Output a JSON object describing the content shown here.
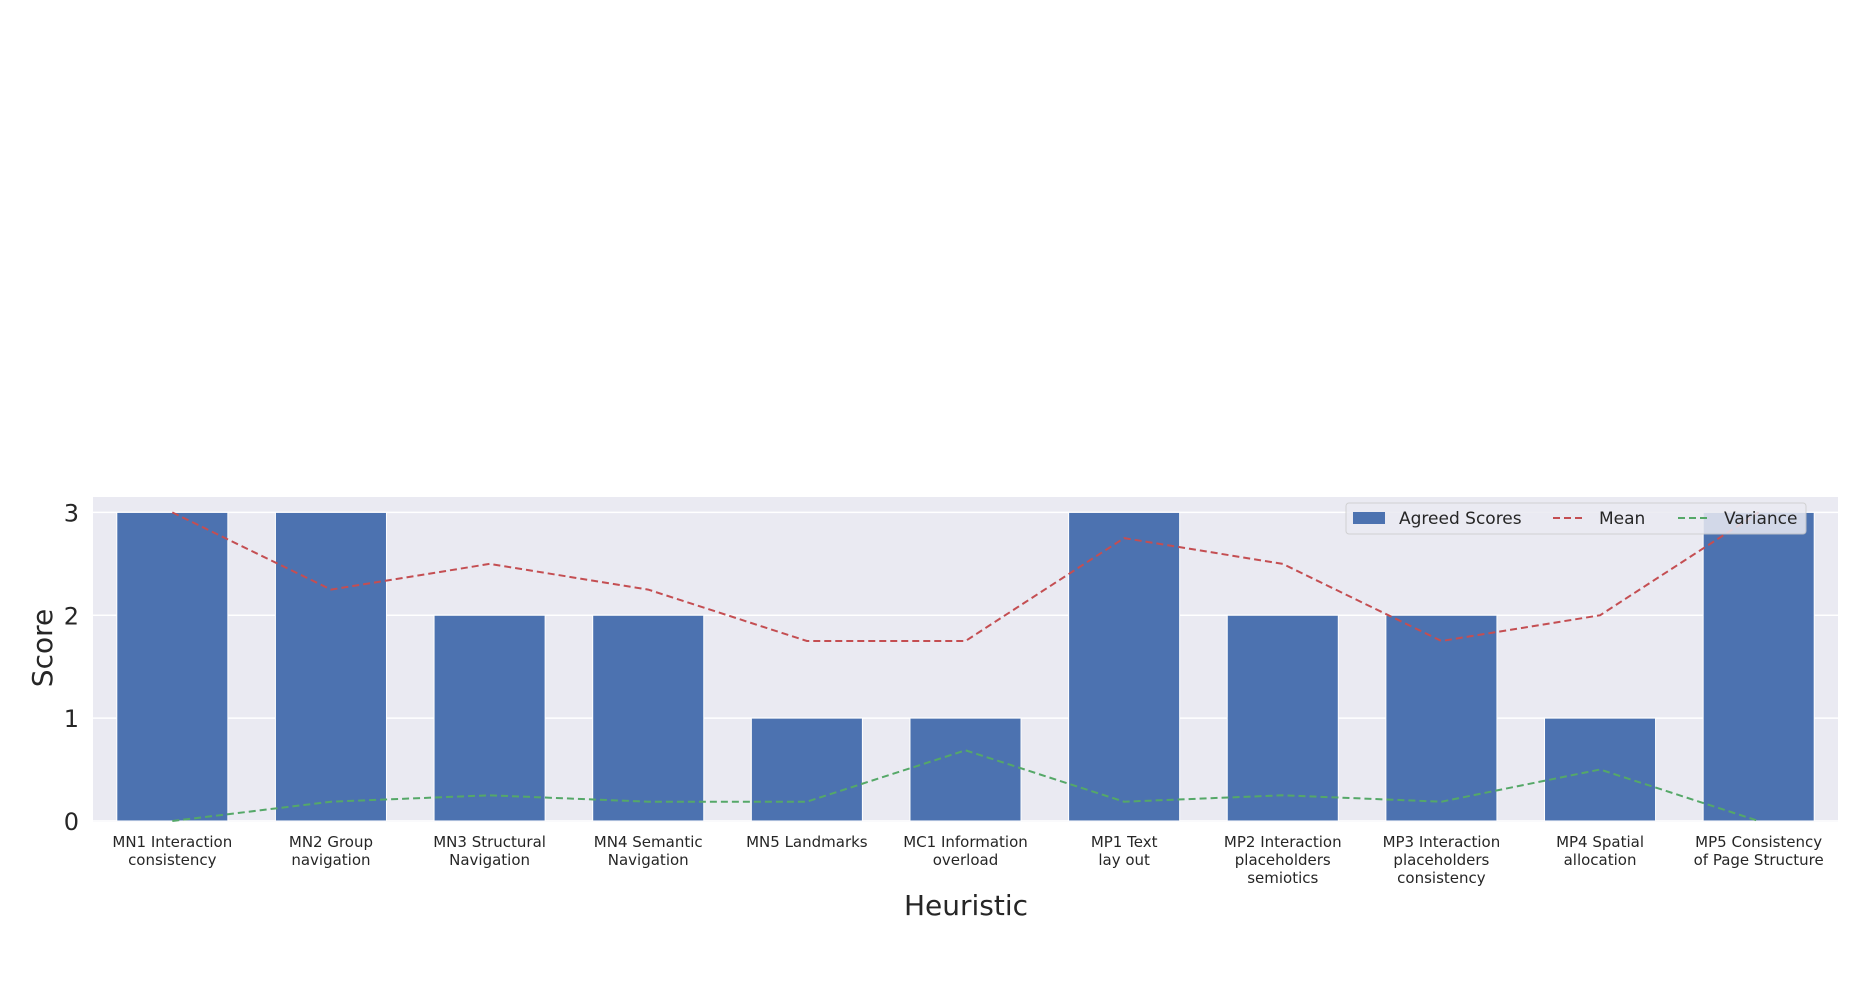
{
  "chart_data": {
    "type": "bar",
    "categories": [
      [
        "MN1 Interaction",
        "consistency"
      ],
      [
        "MN2 Group",
        "navigation"
      ],
      [
        "MN3 Structural",
        "Navigation"
      ],
      [
        "MN4 Semantic",
        "Navigation"
      ],
      [
        "MN5 Landmarks"
      ],
      [
        "MC1 Information",
        "overload"
      ],
      [
        "MP1 Text",
        "lay out"
      ],
      [
        "MP2 Interaction",
        "placeholders",
        "semiotics"
      ],
      [
        "MP3 Interaction",
        "placeholders",
        "consistency"
      ],
      [
        "MP4 Spatial",
        "allocation"
      ],
      [
        "MP5 Consistency",
        "of Page Structure"
      ]
    ],
    "series": [
      {
        "name": "Agreed Scores",
        "kind": "bar",
        "color": "#4c72b0",
        "values": [
          3,
          3,
          2,
          2,
          1,
          1,
          3,
          2,
          2,
          1,
          3
        ]
      },
      {
        "name": "Mean",
        "kind": "line",
        "dashed": true,
        "color": "#c44e52",
        "values": [
          3,
          2.25,
          2.5,
          2.25,
          1.75,
          1.75,
          2.75,
          2.5,
          1.75,
          2,
          3
        ]
      },
      {
        "name": "Variance",
        "kind": "line",
        "dashed": true,
        "color": "#55a868",
        "values": [
          0,
          0.1875,
          0.25,
          0.1875,
          0.1875,
          0.6875,
          0.1875,
          0.25,
          0.1875,
          0.5,
          0
        ]
      }
    ],
    "xlabel": "Heuristic",
    "ylabel": "Score",
    "ylim": [
      -0.01,
      3.15
    ],
    "yticks": [
      0,
      1,
      2,
      3
    ],
    "grid": true,
    "legend": "top-right",
    "background": "#eaeaf2"
  }
}
